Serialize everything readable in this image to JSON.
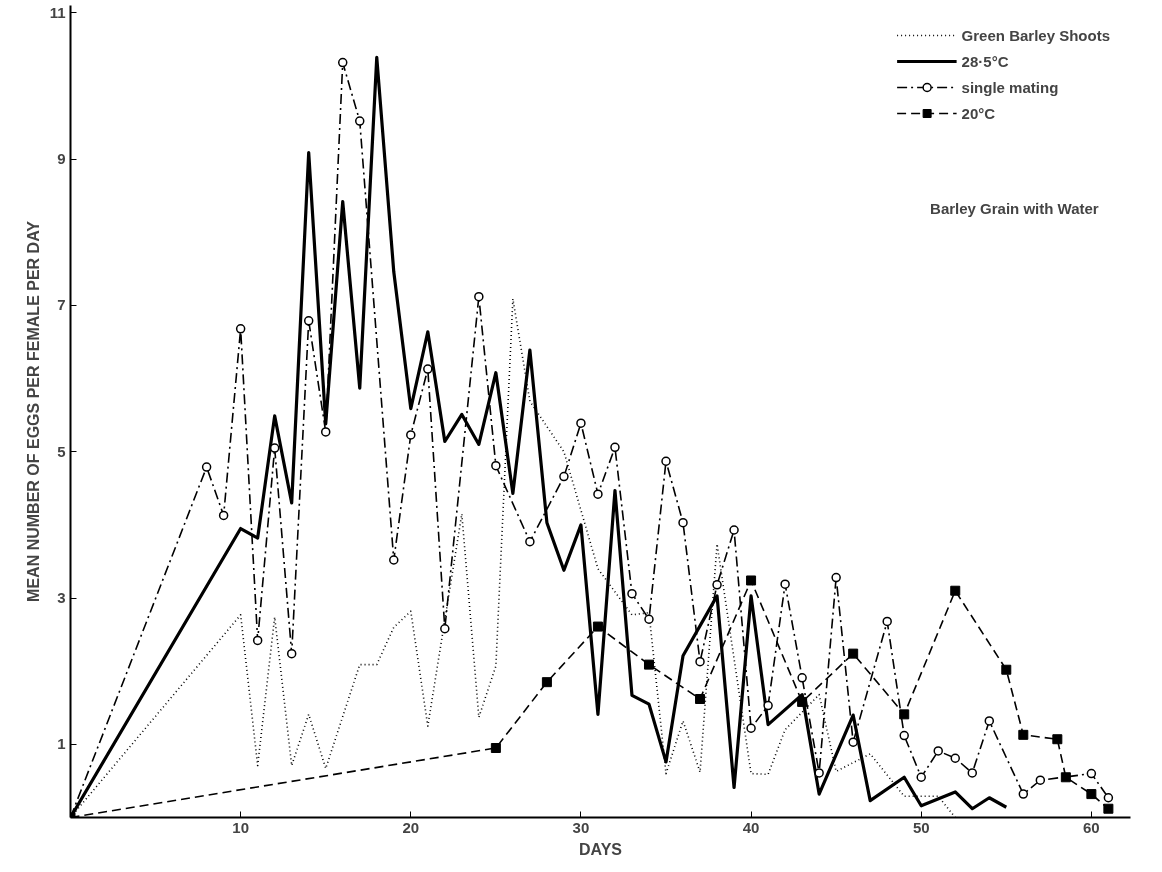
{
  "chart_data": {
    "type": "line",
    "xlabel": "DAYS",
    "ylabel": "MEAN NUMBER OF EGGS PER FEMALE PER DAY",
    "xlim": [
      0,
      62.3
    ],
    "ylim": [
      0,
      11.1
    ],
    "xticks": [
      10,
      20,
      30,
      40,
      50,
      60
    ],
    "yticks": [
      1,
      3,
      5,
      7,
      9,
      11
    ],
    "grid": false,
    "legend": "top right",
    "annotations": [
      "Barley Grain with Water"
    ],
    "series": [
      {
        "name": "Green Barley Shoots",
        "color": "#000000",
        "line_style": "dotted",
        "marker": "none",
        "x": [
          0,
          10,
          11,
          12,
          13,
          14,
          15,
          17,
          18,
          19,
          20,
          21,
          23,
          24,
          25,
          26,
          27,
          29,
          31,
          33,
          34,
          35,
          36,
          37,
          38,
          40,
          41,
          42,
          44,
          45,
          47,
          49,
          51,
          52
        ],
        "values": [
          0,
          2.77,
          0.71,
          2.74,
          0.71,
          1.41,
          0.67,
          2.09,
          2.09,
          2.6,
          2.82,
          1.25,
          4.15,
          1.37,
          2.07,
          7.09,
          5.69,
          5.0,
          3.4,
          2.77,
          2.8,
          0.6,
          1.32,
          0.62,
          3.74,
          0.6,
          0.59,
          1.2,
          1.68,
          0.63,
          0.87,
          0.29,
          0.29,
          0
        ]
      },
      {
        "name": "28·5°C",
        "color": "#000000",
        "line_style": "solid",
        "marker": "none",
        "x": [
          0,
          10,
          11,
          12,
          13,
          14,
          15,
          16,
          17,
          18,
          19,
          20,
          21,
          22,
          23,
          24,
          25,
          26,
          27,
          28,
          29,
          30,
          31,
          32,
          33,
          34,
          35,
          36,
          38,
          39,
          40,
          41,
          43,
          44,
          46,
          47,
          49,
          50,
          52,
          53,
          54,
          55
        ],
        "values": [
          0,
          3.95,
          3.82,
          5.49,
          4.3,
          9.09,
          5.38,
          8.42,
          5.87,
          10.39,
          7.46,
          5.59,
          6.64,
          5.14,
          5.51,
          5.1,
          6.08,
          4.43,
          6.39,
          4.03,
          3.38,
          4.0,
          1.41,
          4.47,
          1.67,
          1.55,
          0.76,
          2.21,
          3.03,
          0.41,
          3.03,
          1.27,
          1.68,
          0.32,
          1.4,
          0.23,
          0.55,
          0.16,
          0.35,
          0.12,
          0.27,
          0.14
        ]
      },
      {
        "name": "single mating",
        "color": "#000000",
        "line_style": "dashdot",
        "marker": "circle",
        "x": [
          0,
          8,
          9,
          10,
          11,
          12,
          13,
          14,
          15,
          16,
          17,
          19,
          20,
          21,
          22,
          24,
          25,
          27,
          29,
          30,
          31,
          32,
          33,
          34,
          35,
          36,
          37,
          38,
          39,
          40,
          41,
          42,
          43,
          44,
          45,
          46,
          48,
          49,
          50,
          51,
          52,
          53,
          54,
          56,
          57,
          60,
          61
        ],
        "values": [
          0,
          4.79,
          4.13,
          6.68,
          2.42,
          5.05,
          2.24,
          6.79,
          5.27,
          10.32,
          9.52,
          3.52,
          5.23,
          6.13,
          2.58,
          7.12,
          4.81,
          3.77,
          4.66,
          5.39,
          4.42,
          5.06,
          3.06,
          2.71,
          4.87,
          4.03,
          2.13,
          3.18,
          3.93,
          1.22,
          1.53,
          3.19,
          1.91,
          0.61,
          3.28,
          1.03,
          2.68,
          1.12,
          0.55,
          0.91,
          0.81,
          0.61,
          1.32,
          0.32,
          0.51,
          0.6,
          0.27
        ]
      },
      {
        "name": "20°C",
        "color": "#000000",
        "line_style": "dashed",
        "marker": "square",
        "x": [
          0,
          25,
          28,
          31,
          34,
          37,
          40,
          43,
          46,
          49,
          52,
          55,
          56,
          58,
          58.5,
          60,
          61
        ],
        "values": [
          0,
          0.95,
          1.85,
          2.61,
          2.09,
          1.62,
          3.24,
          1.58,
          2.24,
          1.41,
          3.1,
          2.02,
          1.13,
          1.07,
          0.55,
          0.32,
          0.12
        ]
      }
    ]
  }
}
